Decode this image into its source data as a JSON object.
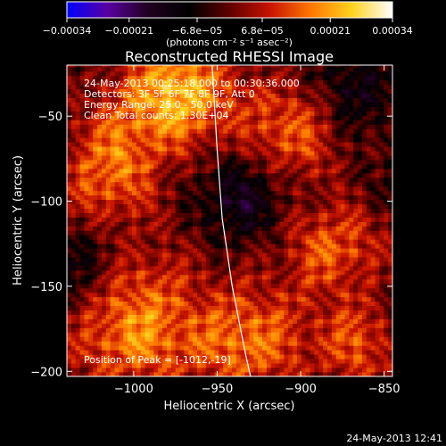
{
  "chart_data": {
    "type": "heatmap",
    "title": "Reconstructed RHESSI Image",
    "xlabel": "Heliocentric X (arcsec)",
    "ylabel": "Heliocentric Y (arcsec)",
    "xlim": [
      -1040,
      -845
    ],
    "ylim": [
      -203,
      -20
    ],
    "x_ticks": [
      -1000,
      -950,
      -900,
      -850
    ],
    "x_tick_labels": [
      "−1000",
      "−950",
      "−900",
      "−850"
    ],
    "y_ticks": [
      -200,
      -150,
      -100,
      -50
    ],
    "y_tick_labels": [
      "−200",
      "−150",
      "−100",
      "−50"
    ],
    "colorbar": {
      "range": [
        -0.00034,
        0.00034
      ],
      "tick_values": [
        -0.00034,
        -0.00021,
        -6.8e-05,
        6.8e-05,
        0.00021,
        0.00034
      ],
      "tick_labels": [
        "−0.00034",
        "−0.00021",
        "−6.8e−05",
        "6.8e−05",
        "0.00021",
        "0.00034"
      ],
      "units": "(photons cm⁻² s⁻¹ asec⁻²)",
      "colormap": [
        "#0000ff",
        "#5a00a0",
        "#200020",
        "#000000",
        "#600000",
        "#c81400",
        "#ff7800",
        "#ffd21e",
        "#ffffff"
      ]
    },
    "info_lines": [
      "24-May-2013 00:25:18.000 to 00:30:36.000",
      "Detectors: 3F 5F 6F 7F 8F 9F, Att 0",
      "Energy Range: 25.0 - 50.0 keV",
      "Clean    Total counts: 1.30E+04"
    ],
    "peak_label": "Position of Peak = [-1012,-19]",
    "limb": {
      "color": "#ffffff",
      "points": [
        [
          -953,
          -20
        ],
        [
          -950,
          -70
        ],
        [
          -947,
          -110
        ],
        [
          -941,
          -150
        ],
        [
          -933,
          -190
        ],
        [
          -930,
          -203
        ]
      ]
    },
    "emission_regions": [
      {
        "x": -975,
        "y": -35,
        "strength": 1.0,
        "spread": 35
      },
      {
        "x": -1015,
        "y": -80,
        "strength": 0.75,
        "spread": 30
      },
      {
        "x": -1000,
        "y": -170,
        "strength": 0.85,
        "spread": 40
      },
      {
        "x": -905,
        "y": -60,
        "strength": 0.65,
        "spread": 30
      },
      {
        "x": -880,
        "y": -130,
        "strength": 0.6,
        "spread": 30
      },
      {
        "x": -930,
        "y": -180,
        "strength": 0.7,
        "spread": 35
      },
      {
        "x": -865,
        "y": -185,
        "strength": 0.55,
        "spread": 25
      }
    ],
    "negative_regions": [
      {
        "x": -935,
        "y": -100,
        "strength": 0.5,
        "spread": 25
      },
      {
        "x": -1030,
        "y": -140,
        "strength": 0.4,
        "spread": 25
      },
      {
        "x": -870,
        "y": -35,
        "strength": 0.4,
        "spread": 25
      }
    ]
  },
  "footer": {
    "timestamp": "24-May-2013 12:41"
  }
}
